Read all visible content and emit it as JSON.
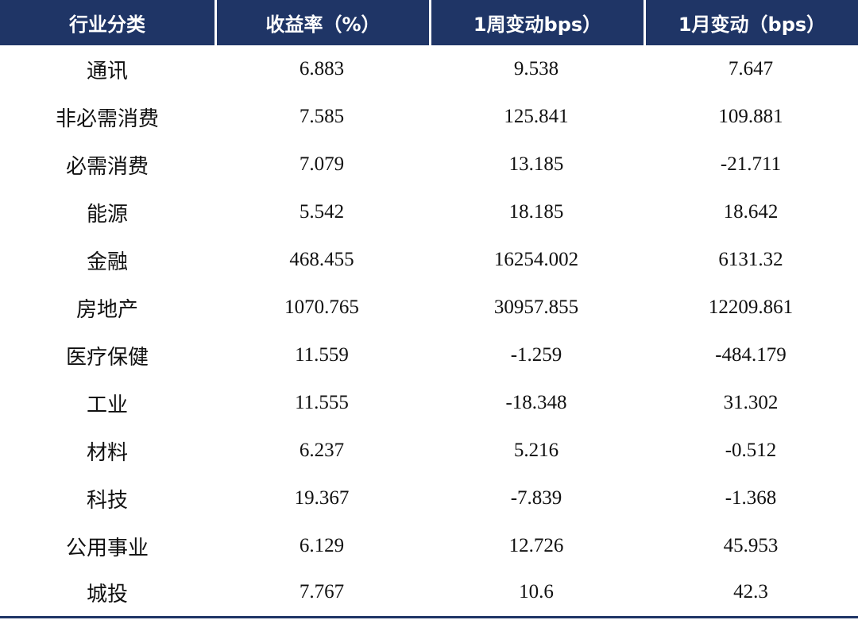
{
  "style": {
    "header_bg": "#1f3566",
    "rule_color": "#1f3566"
  },
  "table": {
    "headers": [
      "行业分类",
      "收益率（%）",
      "1周变动bps）",
      "1月变动（bps）"
    ],
    "rows": [
      [
        "通讯",
        "6.883",
        "9.538",
        "7.647"
      ],
      [
        "非必需消费",
        "7.585",
        "125.841",
        "109.881"
      ],
      [
        "必需消费",
        "7.079",
        "13.185",
        "-21.711"
      ],
      [
        "能源",
        "5.542",
        "18.185",
        "18.642"
      ],
      [
        "金融",
        "468.455",
        "16254.002",
        "6131.32"
      ],
      [
        "房地产",
        "1070.765",
        "30957.855",
        "12209.861"
      ],
      [
        "医疗保健",
        "11.559",
        "-1.259",
        "-484.179"
      ],
      [
        "工业",
        "11.555",
        "-18.348",
        "31.302"
      ],
      [
        "材料",
        "6.237",
        "5.216",
        "-0.512"
      ],
      [
        "科技",
        "19.367",
        "-7.839",
        "-1.368"
      ],
      [
        "公用事业",
        "6.129",
        "12.726",
        "45.953"
      ],
      [
        "城投",
        "7.767",
        "10.6",
        "42.3"
      ]
    ]
  }
}
